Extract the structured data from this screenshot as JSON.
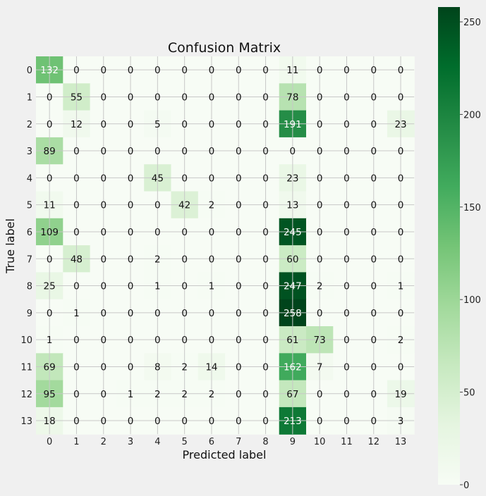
{
  "chart_data": {
    "type": "heatmap",
    "title": "Confusion Matrix",
    "xlabel": "Predicted label",
    "ylabel": "True label",
    "x_categories": [
      "0",
      "1",
      "2",
      "3",
      "4",
      "5",
      "6",
      "7",
      "8",
      "9",
      "10",
      "11",
      "12",
      "13"
    ],
    "y_categories": [
      "0",
      "1",
      "2",
      "3",
      "4",
      "5",
      "6",
      "7",
      "8",
      "9",
      "10",
      "11",
      "12",
      "13"
    ],
    "matrix": [
      [
        132,
        0,
        0,
        0,
        0,
        0,
        0,
        0,
        0,
        11,
        0,
        0,
        0,
        0
      ],
      [
        0,
        55,
        0,
        0,
        0,
        0,
        0,
        0,
        0,
        78,
        0,
        0,
        0,
        0
      ],
      [
        0,
        12,
        0,
        0,
        5,
        0,
        0,
        0,
        0,
        191,
        0,
        0,
        0,
        23
      ],
      [
        89,
        0,
        0,
        0,
        0,
        0,
        0,
        0,
        0,
        0,
        0,
        0,
        0,
        0
      ],
      [
        0,
        0,
        0,
        0,
        45,
        0,
        0,
        0,
        0,
        23,
        0,
        0,
        0,
        0
      ],
      [
        11,
        0,
        0,
        0,
        0,
        42,
        2,
        0,
        0,
        13,
        0,
        0,
        0,
        0
      ],
      [
        109,
        0,
        0,
        0,
        0,
        0,
        0,
        0,
        0,
        245,
        0,
        0,
        0,
        0
      ],
      [
        0,
        48,
        0,
        0,
        2,
        0,
        0,
        0,
        0,
        60,
        0,
        0,
        0,
        0
      ],
      [
        25,
        0,
        0,
        0,
        1,
        0,
        1,
        0,
        0,
        247,
        2,
        0,
        0,
        1
      ],
      [
        0,
        1,
        0,
        0,
        0,
        0,
        0,
        0,
        0,
        258,
        0,
        0,
        0,
        0
      ],
      [
        1,
        0,
        0,
        0,
        0,
        0,
        0,
        0,
        0,
        61,
        73,
        0,
        0,
        2
      ],
      [
        69,
        0,
        0,
        0,
        8,
        2,
        14,
        0,
        0,
        162,
        7,
        0,
        0,
        0
      ],
      [
        95,
        0,
        0,
        1,
        2,
        2,
        2,
        0,
        0,
        67,
        0,
        0,
        0,
        19
      ],
      [
        18,
        0,
        0,
        0,
        0,
        0,
        0,
        0,
        0,
        213,
        0,
        0,
        0,
        3
      ]
    ],
    "colormap": "Greens",
    "color_range": [
      0,
      258
    ],
    "colorbar_ticks": [
      0,
      50,
      100,
      150,
      200,
      250
    ],
    "grid": true
  }
}
